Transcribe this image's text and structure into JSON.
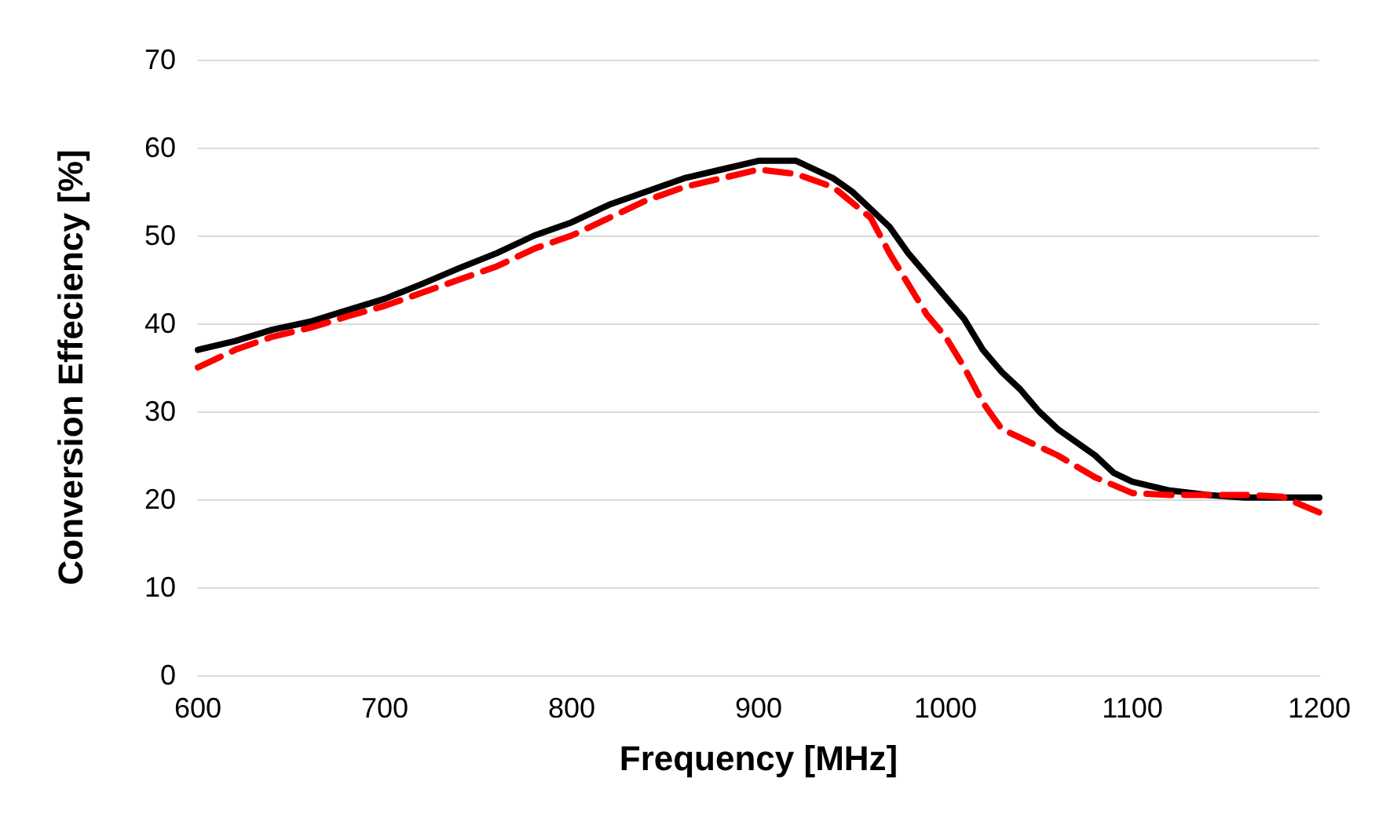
{
  "chart_data": {
    "type": "line",
    "xlabel": "Frequency [MHz]",
    "ylabel": "Conversion Effeciency [%]",
    "xlim": [
      600,
      1200
    ],
    "xticks": [
      600,
      700,
      800,
      900,
      1000,
      1100,
      1200
    ],
    "ylim": [
      0,
      70
    ],
    "yticks": [
      0,
      10,
      20,
      30,
      40,
      50,
      60,
      70
    ],
    "grid": "y",
    "marker": "none",
    "series": [
      {
        "color": "#000000",
        "line_style": "solid",
        "x": [
          600,
          620,
          640,
          660,
          680,
          700,
          720,
          740,
          760,
          780,
          800,
          820,
          840,
          860,
          880,
          900,
          920,
          940,
          950,
          960,
          970,
          980,
          990,
          1000,
          1010,
          1020,
          1030,
          1040,
          1050,
          1060,
          1070,
          1080,
          1090,
          1100,
          1120,
          1140,
          1160,
          1200
        ],
        "values": [
          37,
          38,
          39.3,
          40.2,
          41.5,
          42.8,
          44.5,
          46.3,
          48,
          50,
          51.5,
          53.5,
          55,
          56.5,
          57.5,
          58.5,
          58.5,
          56.5,
          55,
          53,
          51,
          48,
          45.5,
          43,
          40.5,
          37,
          34.5,
          32.5,
          30,
          28,
          26.5,
          25,
          23,
          22,
          21,
          20.5,
          20.2,
          20.2
        ]
      },
      {
        "color": "#ff0000",
        "line_style": "dashed",
        "x": [
          600,
          620,
          640,
          660,
          680,
          700,
          720,
          740,
          760,
          780,
          800,
          820,
          840,
          860,
          880,
          900,
          920,
          940,
          960,
          970,
          980,
          990,
          1000,
          1010,
          1020,
          1030,
          1040,
          1060,
          1080,
          1100,
          1120,
          1140,
          1160,
          1180,
          1200
        ],
        "values": [
          35,
          37,
          38.5,
          39.5,
          40.8,
          42,
          43.5,
          45,
          46.5,
          48.5,
          50,
          52,
          54,
          55.5,
          56.5,
          57.5,
          57,
          55.5,
          52,
          48,
          44.5,
          41,
          38.5,
          35,
          31,
          28,
          27,
          25,
          22.5,
          20.7,
          20.5,
          20.5,
          20.5,
          20.3,
          18.5
        ]
      }
    ]
  }
}
